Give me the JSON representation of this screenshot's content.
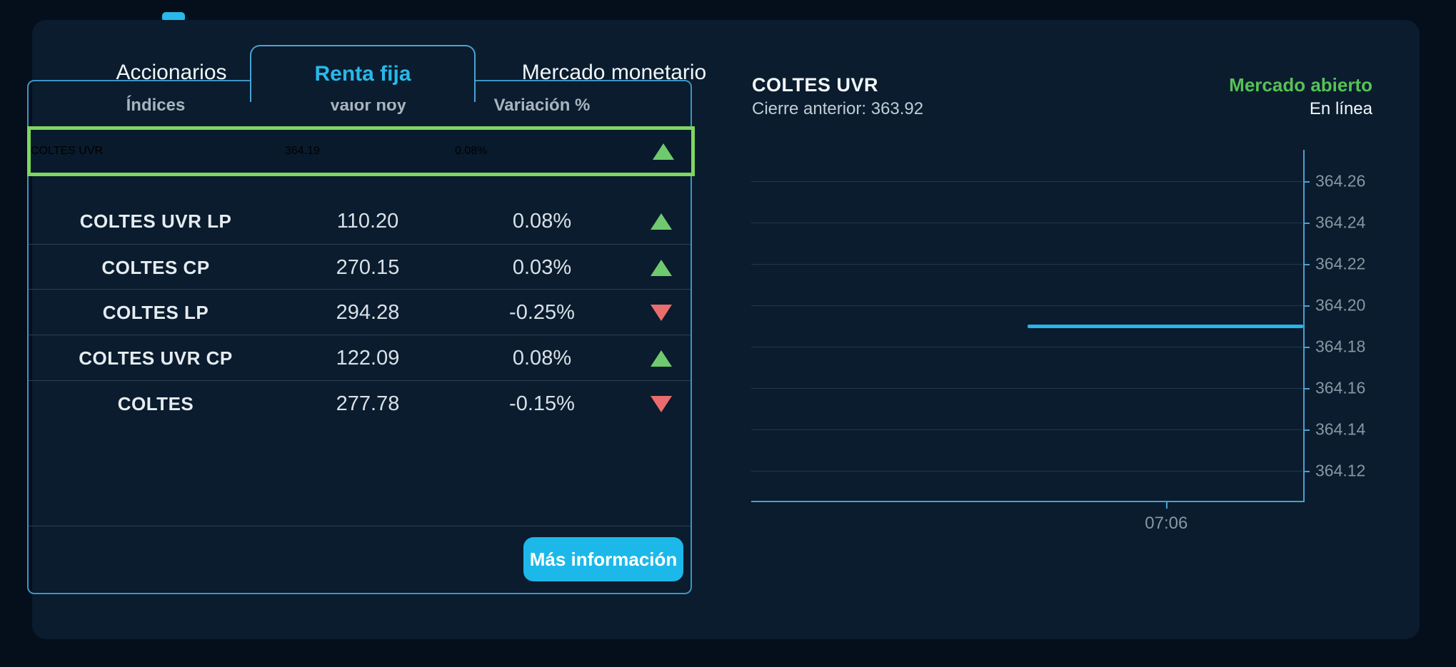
{
  "window": {
    "background": "#050f1c",
    "panel_background": "#0a1c2e"
  },
  "colors": {
    "accent_cyan": "#29b8e8",
    "card_border": "#3d94c4",
    "selected_row_border": "#7ed75e",
    "positive_green": "#6fca6f",
    "negative_red": "#ea6d6d",
    "market_open_green": "#56c156",
    "chart_line": "#29b4e6",
    "axis": "#4aa0cf",
    "divider": "#2e4052"
  },
  "tabs": [
    {
      "label": "Accionarios",
      "active": false
    },
    {
      "label": "Renta fija",
      "active": true
    },
    {
      "label": "Mercado monetario",
      "active": false
    }
  ],
  "table": {
    "headers": [
      "Índices",
      "Valor hoy",
      "Variación %"
    ],
    "rows": [
      {
        "name": "COLTES UVR",
        "value": "364.19",
        "change": "0.08%",
        "direction": "up",
        "selected": true
      },
      {
        "name": "COLTES UVR LP",
        "value": "110.20",
        "change": "0.08%",
        "direction": "up",
        "selected": false
      },
      {
        "name": "COLTES CP",
        "value": "270.15",
        "change": "0.03%",
        "direction": "up",
        "selected": false
      },
      {
        "name": "COLTES LP",
        "value": "294.28",
        "change": "-0.25%",
        "direction": "down",
        "selected": false
      },
      {
        "name": "COLTES UVR CP",
        "value": "122.09",
        "change": "0.08%",
        "direction": "up",
        "selected": false
      },
      {
        "name": "COLTES",
        "value": "277.78",
        "change": "-0.15%",
        "direction": "down",
        "selected": false
      }
    ]
  },
  "more_info_button": {
    "label": "Más información"
  },
  "detail": {
    "title": "COLTES UVR",
    "previous_close_label": "Cierre anterior:",
    "previous_close_value": "363.92",
    "previous_close_text": "Cierre anterior: 363.92",
    "market_status": "Mercado abierto",
    "connection_status": "En línea"
  },
  "chart_data": {
    "type": "line",
    "title": "COLTES UVR",
    "current_value": 364.19,
    "previous_close": 363.92,
    "ylim": [
      364.105,
      364.275
    ],
    "y_ticks": [
      364.26,
      364.24,
      364.22,
      364.2,
      364.18,
      364.16,
      364.14,
      364.12
    ],
    "x_ticks": [
      {
        "label": "07:06",
        "x_frac": 0.752
      }
    ],
    "grid": true,
    "y_axis_side": "right",
    "legend": "none",
    "series": [
      {
        "name": "COLTES UVR",
        "points": [
          {
            "x_frac": 0.5,
            "y": 364.19
          },
          {
            "x_frac": 1.0,
            "y": 364.19
          }
        ]
      }
    ]
  }
}
